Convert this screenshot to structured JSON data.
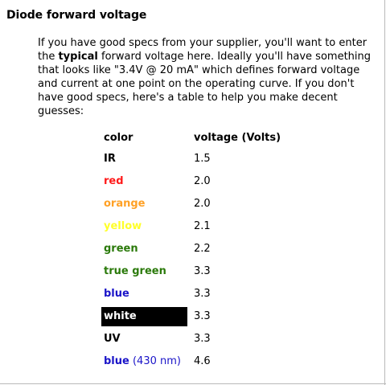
{
  "title": "Diode forward voltage",
  "paragraph": {
    "line1": "If you have good specs from your supplier, you'll want to enter",
    "line2_pre": "the ",
    "line2_bold": "typical",
    "line2_post": " forward voltage here. Ideally you'll have something",
    "line3": "that looks like \"3.4V @ 20 mA\" which defines forward voltage",
    "line4": "and current at one point on the operating curve. If you don't",
    "line5": "have good specs, here's a table to help you make decent",
    "line6": "guesses:"
  },
  "table": {
    "headers": {
      "color": "color",
      "voltage": "voltage (Volts)"
    },
    "rows": [
      {
        "color": "IR",
        "voltage": "1.5",
        "text_color": "#000000",
        "bg": "transparent"
      },
      {
        "color": "red",
        "voltage": "2.0",
        "text_color": "#ff1a1a",
        "bg": "transparent"
      },
      {
        "color": "orange",
        "voltage": "2.0",
        "text_color": "#ffa126",
        "bg": "transparent"
      },
      {
        "color": "yellow",
        "voltage": "2.1",
        "text_color": "#ffff2a",
        "bg": "transparent"
      },
      {
        "color": "green",
        "voltage": "2.2",
        "text_color": "#2b7a0b",
        "bg": "transparent"
      },
      {
        "color": "true green",
        "voltage": "3.3",
        "text_color": "#2b7a0b",
        "bg": "transparent"
      },
      {
        "color": "blue",
        "voltage": "3.3",
        "text_color": "#1a14c8",
        "bg": "transparent"
      },
      {
        "color": "white",
        "voltage": "3.3",
        "text_color": "#ffffff",
        "bg": "#000000"
      },
      {
        "color": "UV",
        "voltage": "3.3",
        "text_color": "#000000",
        "bg": "transparent"
      },
      {
        "color": "blue",
        "voltage": "4.6",
        "text_color": "#1a14c8",
        "bg": "transparent",
        "note": "(430 nm)"
      }
    ]
  }
}
